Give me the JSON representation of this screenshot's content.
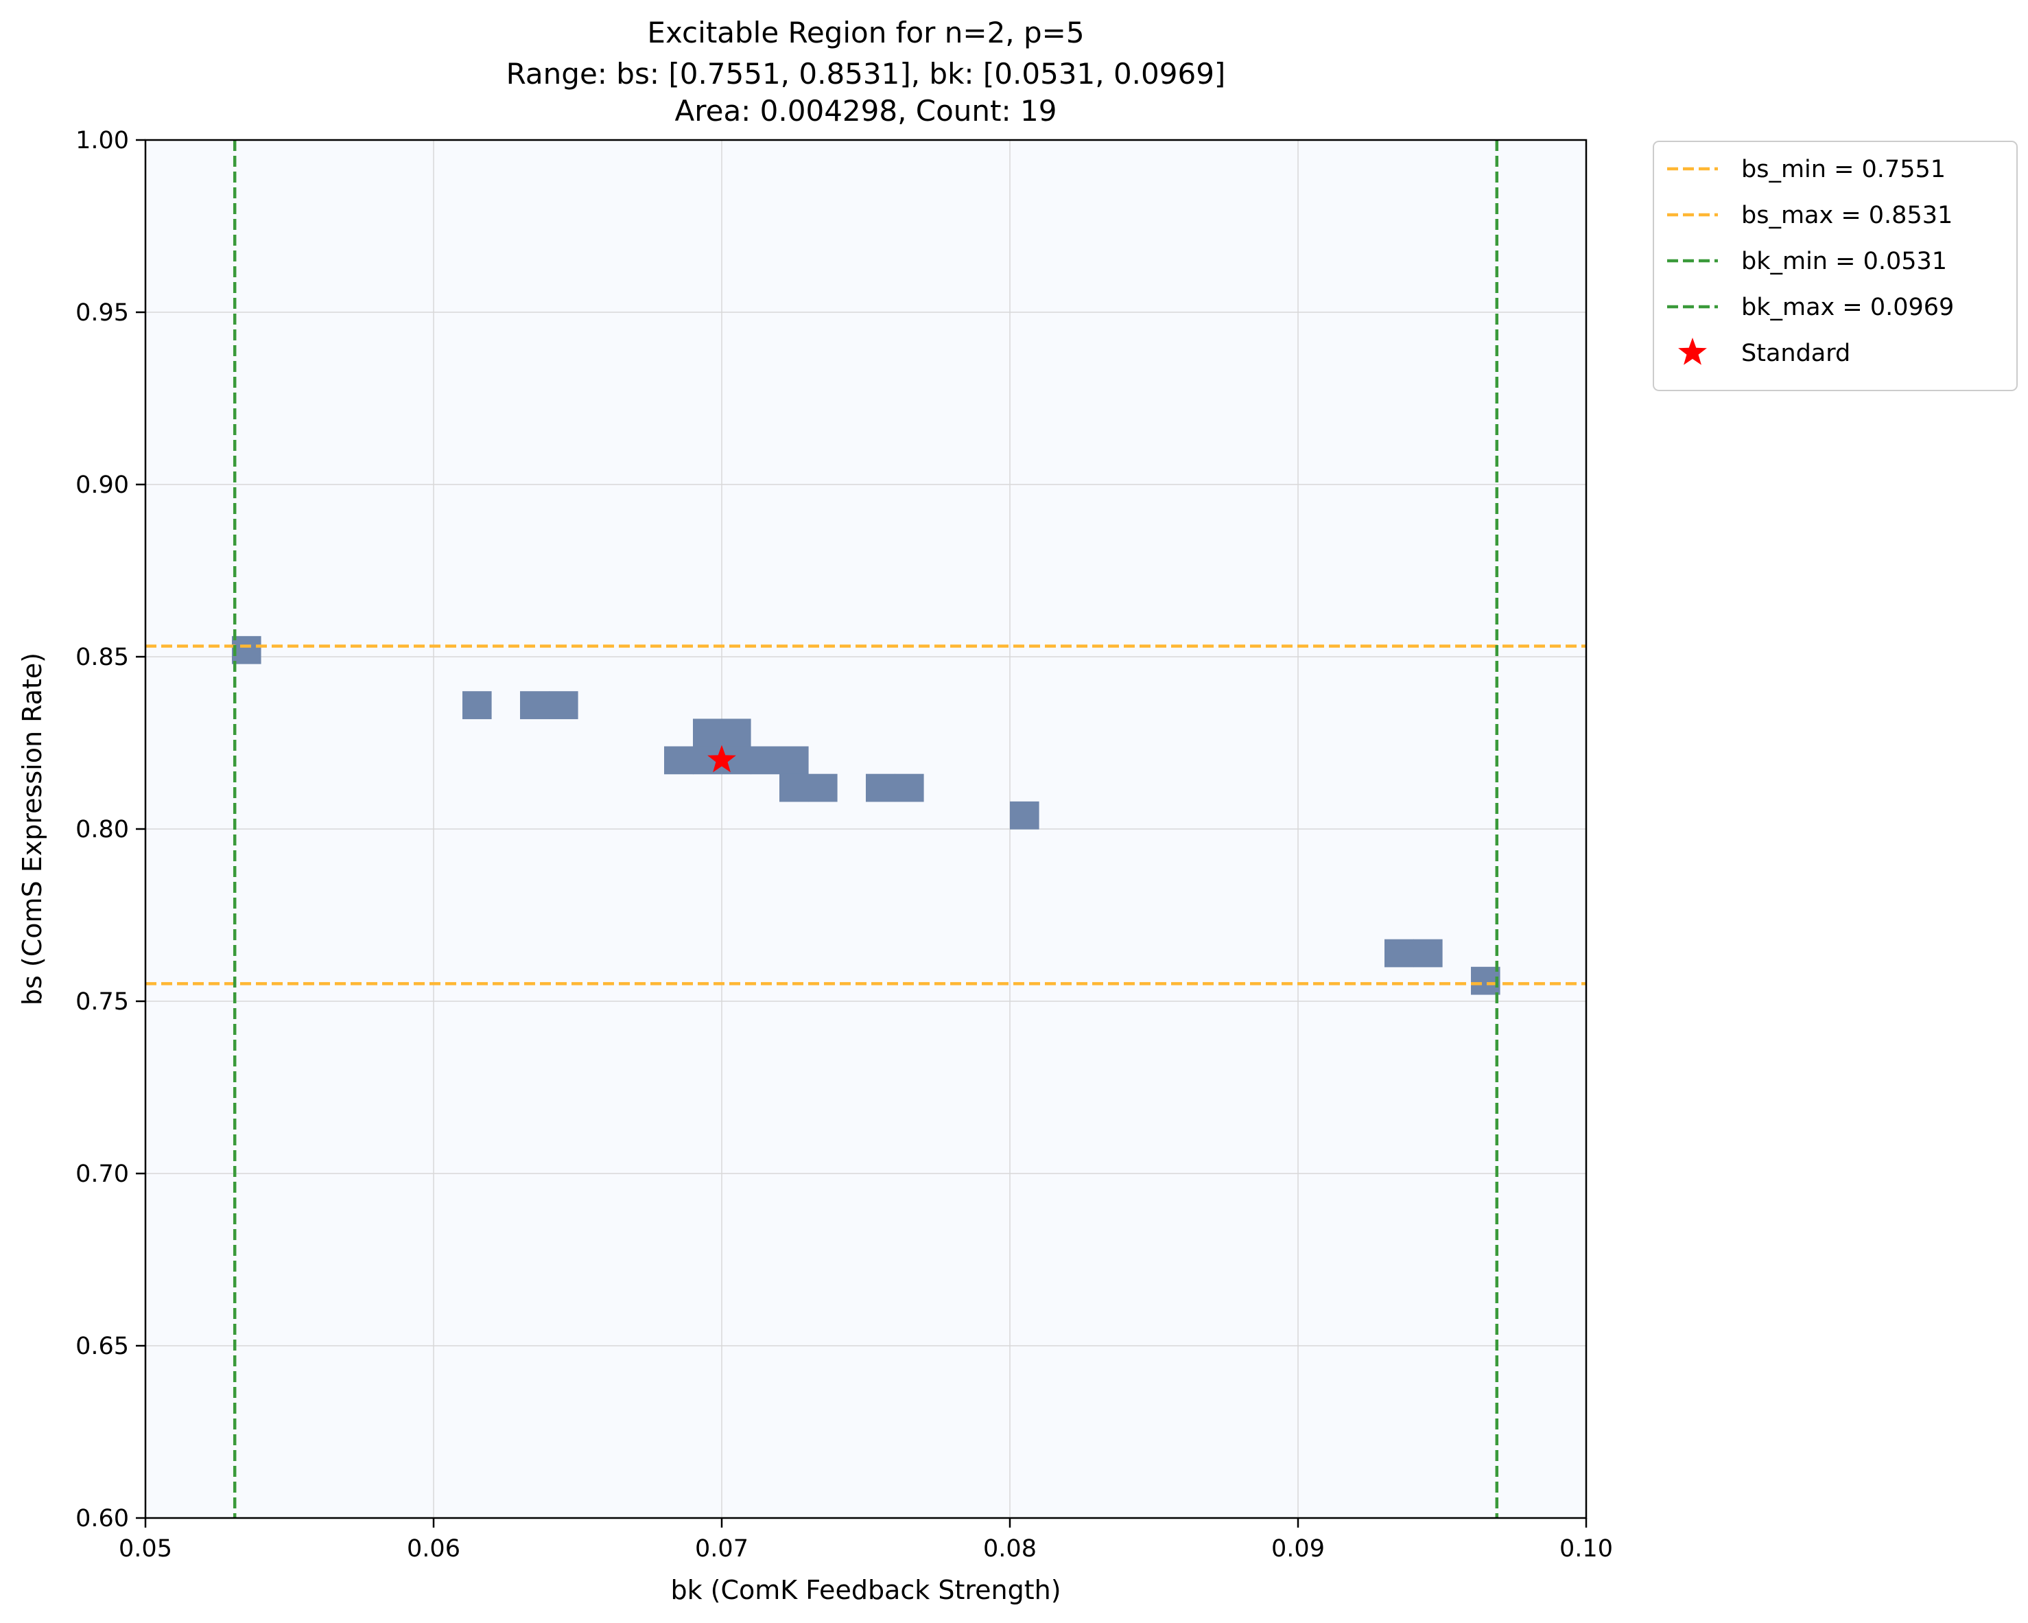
{
  "chart_data": {
    "type": "heatmap",
    "title": [
      "Excitable Region for n=2, p=5",
      "Range: bs: [0.7551, 0.8531], bk: [0.0531, 0.0969]",
      "Area: 0.004298, Count: 19"
    ],
    "xlabel": "bk (ComK Feedback Strength)",
    "ylabel": "bs (ComS Expression Rate)",
    "xlim": [
      0.05,
      0.1
    ],
    "ylim": [
      0.6,
      1.0
    ],
    "xticks": [
      "0.05",
      "0.06",
      "0.07",
      "0.08",
      "0.09",
      "0.10"
    ],
    "yticks": [
      "0.60",
      "0.65",
      "0.70",
      "0.75",
      "0.80",
      "0.85",
      "0.90",
      "0.95",
      "1.00"
    ],
    "grid": true,
    "legend_position": "outside top-right",
    "cell_size": {
      "bk": 0.001,
      "bs": 0.008
    },
    "region_color": "#6f86ab",
    "background_color": "#f8fafe",
    "excitable_cells": [
      {
        "bk": 0.0535,
        "bs": 0.852
      },
      {
        "bk": 0.0615,
        "bs": 0.836
      },
      {
        "bk": 0.0635,
        "bs": 0.836
      },
      {
        "bk": 0.0645,
        "bs": 0.836
      },
      {
        "bk": 0.0695,
        "bs": 0.828
      },
      {
        "bk": 0.0705,
        "bs": 0.828
      },
      {
        "bk": 0.0685,
        "bs": 0.82
      },
      {
        "bk": 0.0695,
        "bs": 0.82
      },
      {
        "bk": 0.0705,
        "bs": 0.82
      },
      {
        "bk": 0.0715,
        "bs": 0.82
      },
      {
        "bk": 0.0725,
        "bs": 0.82
      },
      {
        "bk": 0.0725,
        "bs": 0.812
      },
      {
        "bk": 0.0735,
        "bs": 0.812
      },
      {
        "bk": 0.0755,
        "bs": 0.812
      },
      {
        "bk": 0.0765,
        "bs": 0.812
      },
      {
        "bk": 0.0805,
        "bs": 0.804
      },
      {
        "bk": 0.0935,
        "bs": 0.764
      },
      {
        "bk": 0.0945,
        "bs": 0.764
      },
      {
        "bk": 0.0965,
        "bs": 0.756
      }
    ],
    "reference_lines": [
      {
        "name": "bs_min = 0.7551",
        "orientation": "horizontal",
        "value": 0.7551,
        "color": "#ffb733"
      },
      {
        "name": "bs_max = 0.8531",
        "orientation": "horizontal",
        "value": 0.8531,
        "color": "#ffb733"
      },
      {
        "name": "bk_min = 0.0531",
        "orientation": "vertical",
        "value": 0.0531,
        "color": "#3a9a3a"
      },
      {
        "name": "bk_max = 0.0969",
        "orientation": "vertical",
        "value": 0.0969,
        "color": "#3a9a3a"
      }
    ],
    "standard_point": {
      "name": "Standard",
      "bk": 0.07,
      "bs": 0.82,
      "color": "#ff0000",
      "marker": "star"
    }
  }
}
